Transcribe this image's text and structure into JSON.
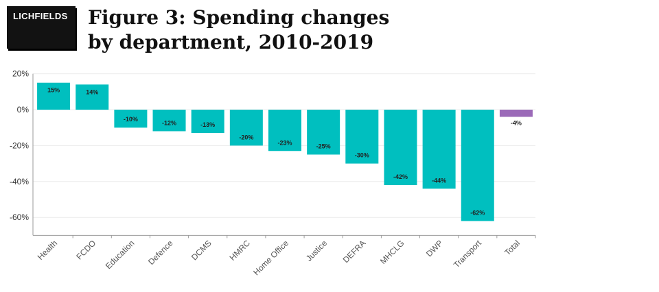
{
  "brand": {
    "logo_text": "LICHFIELDS"
  },
  "header": {
    "title_line1": "Figure 3: Spending changes",
    "title_line2": "by department, 2010-2019"
  },
  "colors": {
    "bar": "#00bfbf",
    "total_bar": "#9b6ab8",
    "grid": "#ececec",
    "axis": "#9a9a9a"
  },
  "chart_data": {
    "type": "bar",
    "categories": [
      "Health",
      "FCDO",
      "Education",
      "Defence",
      "DCMS",
      "HMRC",
      "Home Office",
      "Justice",
      "DEFRA",
      "MHCLG",
      "DWP",
      "Transport",
      "Total"
    ],
    "values": [
      15,
      14,
      -10,
      -12,
      -13,
      -20,
      -23,
      -25,
      -30,
      -42,
      -44,
      -62,
      -4
    ],
    "value_labels": [
      "15%",
      "14%",
      "-10%",
      "-12%",
      "-13%",
      "-20%",
      "-23%",
      "-25%",
      "-30%",
      "-42%",
      "-44%",
      "-62%",
      "-4%"
    ],
    "yticks": [
      20,
      0,
      -20,
      -40,
      -60
    ],
    "ytick_labels": [
      "20%",
      "0%",
      "-20%",
      "-40%",
      "-60%"
    ],
    "ylim": [
      -70,
      20
    ],
    "title": "Figure 3: Spending changes by department, 2010-2019",
    "xlabel": "",
    "ylabel": "",
    "grid": true,
    "highlight_category": "Total"
  }
}
